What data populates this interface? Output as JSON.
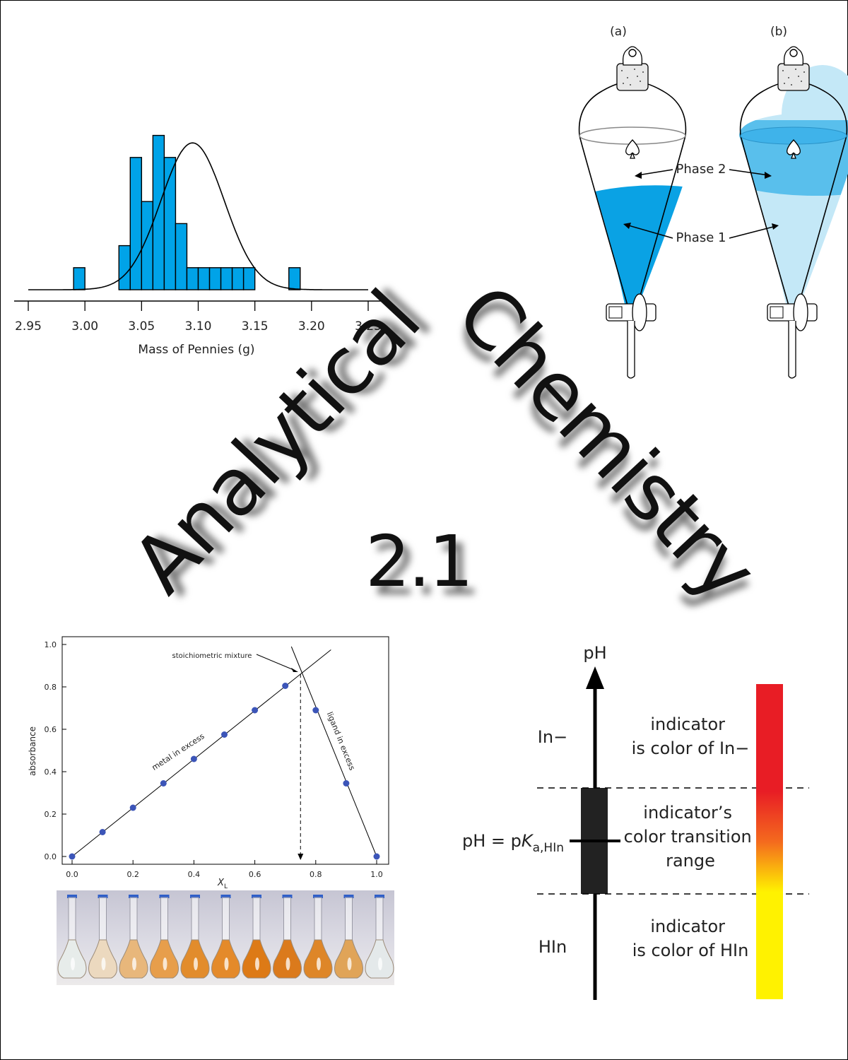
{
  "cover": {
    "title_word_1": "Analytical",
    "title_word_2": "Chemistry",
    "edition": "2.1"
  },
  "histogram": {
    "xlabel": "Mass of Pennies (g)",
    "ticks": [
      "2.95",
      "3.00",
      "3.05",
      "3.10",
      "3.15",
      "3.20",
      "3.25"
    ],
    "bar_color": "#00a3e8"
  },
  "funnels": {
    "label_a": "(a)",
    "label_b": "(b)",
    "phase2": "Phase 2",
    "phase1": "Phase 1",
    "phase_dark_color": "#0aa2e4",
    "phase_light_color": "#c4e8f7"
  },
  "job_plot": {
    "ylabel": "absorbance",
    "xlabel": "X",
    "xlabel_sub": "L",
    "stoich_label": "stoichiometric mixture",
    "metal_label": "metal in excess",
    "ligand_label": "ligand in excess",
    "point_color": "#3c55b8"
  },
  "indicator": {
    "ph_label": "pH",
    "in_minus": "In−",
    "hin": "HIn",
    "pka_prefix": "pH = p",
    "pka_k": "K",
    "pka_sub": "a,HIn",
    "top_line1": "indicator",
    "top_line2": "is color of In−",
    "mid_line1": "indicator’s",
    "mid_line2": "color transition",
    "mid_line3": "range",
    "bot_line1": "indicator",
    "bot_line2": "is color of HIn"
  },
  "chart_data": [
    {
      "type": "bar",
      "xlabel": "Mass of Pennies (g)",
      "ylabel": "",
      "xlim": [
        2.95,
        3.25
      ],
      "bin_width": 0.01,
      "bin_starts": [
        2.99,
        3.03,
        3.04,
        3.05,
        3.06,
        3.07,
        3.08,
        3.09,
        3.1,
        3.11,
        3.12,
        3.13,
        3.14,
        3.15,
        3.16,
        3.17,
        3.18
      ],
      "values": [
        1,
        2,
        6,
        4,
        7,
        6,
        3,
        1,
        1,
        1,
        1,
        1,
        1,
        0,
        0,
        0,
        1
      ],
      "normal_curve": {
        "mean": 3.095,
        "sd": 0.028
      }
    },
    {
      "type": "scatter",
      "xlabel": "XL",
      "ylabel": "absorbance",
      "xlim": [
        0.0,
        1.0
      ],
      "ylim": [
        0.0,
        1.0
      ],
      "xticks": [
        "0.0",
        "0.2",
        "0.4",
        "0.6",
        "0.8",
        "1.0"
      ],
      "yticks": [
        "0.0",
        "0.2",
        "0.4",
        "0.6",
        "0.8",
        "1.0"
      ],
      "x": [
        0.0,
        0.1,
        0.2,
        0.3,
        0.4,
        0.5,
        0.6,
        0.7,
        0.8,
        0.9,
        1.0
      ],
      "y": [
        0.0,
        0.115,
        0.23,
        0.345,
        0.46,
        0.575,
        0.69,
        0.805,
        0.69,
        0.345,
        0.0
      ],
      "stoichiometric_x": 0.75
    }
  ]
}
